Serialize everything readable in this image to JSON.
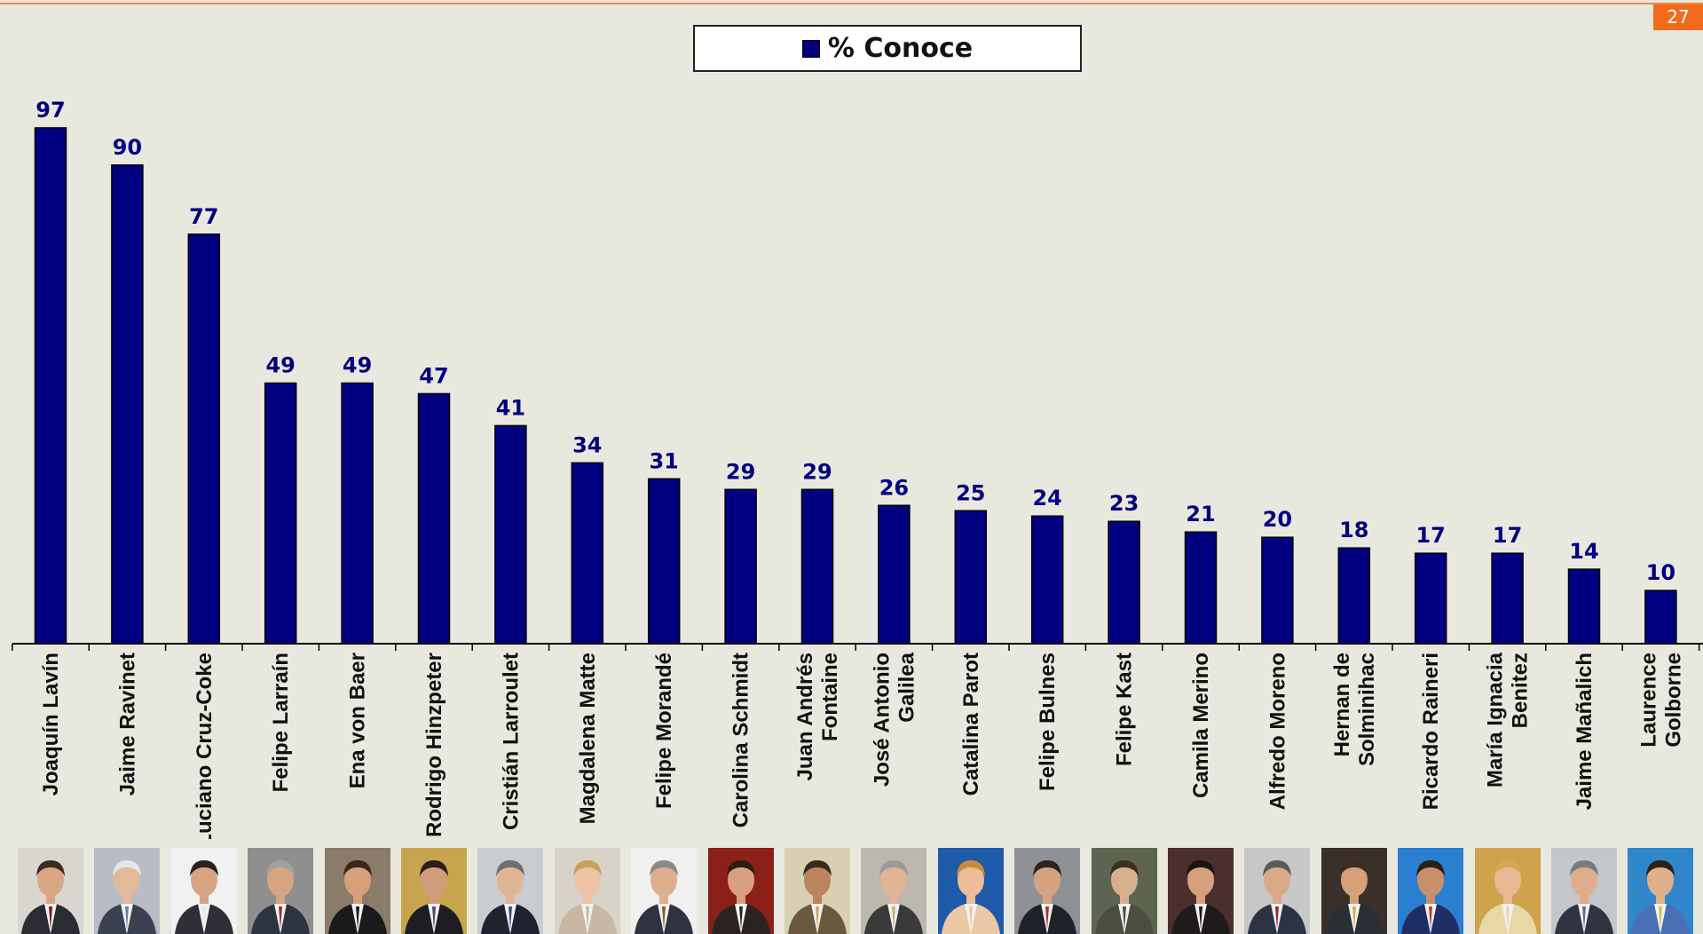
{
  "page_number": "27",
  "legend": {
    "label": "% Conoce",
    "color": "#000080"
  },
  "chart_data": {
    "type": "bar",
    "legend": [
      "% Conoce"
    ],
    "legend_position": "top-center",
    "grid": false,
    "ylim": [
      0,
      100
    ],
    "categories": [
      [
        "Joaquín Lavín"
      ],
      [
        "Jaime Ravinet"
      ],
      [
        "Luciano Cruz-Coke"
      ],
      [
        "Felipe Larraín"
      ],
      [
        "Ena von Baer"
      ],
      [
        "Rodrigo Hinzpeter"
      ],
      [
        "Cristián Larroulet"
      ],
      [
        "Magdalena Matte"
      ],
      [
        "Felipe Morandé"
      ],
      [
        "Carolina Schmidt"
      ],
      [
        "Juan Andrés",
        "Fontaine"
      ],
      [
        "José Antonio",
        "Galilea"
      ],
      [
        "Catalina Parot"
      ],
      [
        "Felipe Bulnes"
      ],
      [
        "Felipe Kast"
      ],
      [
        "Camila Merino"
      ],
      [
        "Alfredo Moreno"
      ],
      [
        "Hernan de",
        "Solminihac"
      ],
      [
        "Ricardo Raineri"
      ],
      [
        "María Ignacia",
        "Benitez"
      ],
      [
        "Jaime Mañalich"
      ],
      [
        "Laurence",
        "Golborne"
      ]
    ],
    "series": [
      {
        "name": "% Conoce",
        "color": "#000080",
        "values": [
          97,
          90,
          77,
          49,
          49,
          47,
          41,
          34,
          31,
          29,
          29,
          26,
          25,
          24,
          23,
          21,
          20,
          18,
          17,
          17,
          14,
          10
        ]
      }
    ]
  },
  "photos": [
    {
      "name": "Joaquín Lavín",
      "suit": "#2b2b33",
      "tie": "#7a1c1c",
      "bg": "#d9d6cf",
      "skin": "#d9a785",
      "hair": "#3a2a20"
    },
    {
      "name": "Jaime Ravinet",
      "suit": "#3b4150",
      "tie": "#6d7fa8",
      "bg": "#b7bcc6",
      "skin": "#e2b99a",
      "hair": "#e6e6e6"
    },
    {
      "name": "Luciano Cruz-Coke",
      "suit": "#2f3037",
      "tie": "#e8e8e8",
      "bg": "#f1f1f1",
      "skin": "#d8a582",
      "hair": "#2c221c"
    },
    {
      "name": "Felipe Larraín",
      "suit": "#2d3440",
      "tie": "#9b2d2d",
      "bg": "#8f8f8f",
      "skin": "#d7a482",
      "hair": "#a0a0a0"
    },
    {
      "name": "Ena von Baer",
      "suit": "#1a1a1a",
      "tie": "#1a1a1a",
      "bg": "#8a7b6a",
      "skin": "#d7a07b",
      "hair": "#3a2618"
    },
    {
      "name": "Rodrigo Hinzpeter",
      "suit": "#1d1d22",
      "tie": "#4a4a6a",
      "bg": "#c7a44e",
      "skin": "#cf9d7c",
      "hair": "#2a1e16"
    },
    {
      "name": "Cristián Larroulet",
      "suit": "#1f2330",
      "tie": "#3d4d86",
      "bg": "#c9ccd1",
      "skin": "#e0b596",
      "hair": "#6e6e6e"
    },
    {
      "name": "Magdalena Matte",
      "suit": "#c7b7a3",
      "tie": "#c7b7a3",
      "bg": "#d8d3c8",
      "skin": "#ecc3a4",
      "hair": "#c9a05d"
    },
    {
      "name": "Felipe Morandé",
      "suit": "#2f3340",
      "tie": "#8b5a2b",
      "bg": "#f0f0f0",
      "skin": "#dfae8c",
      "hair": "#8a8a8a"
    },
    {
      "name": "Carolina Schmidt",
      "suit": "#2a2322",
      "tie": "#2a2322",
      "bg": "#8c1f17",
      "skin": "#d9a07f",
      "hair": "#2c1d16"
    },
    {
      "name": "Juan Andrés Fontaine",
      "suit": "#6a5a3d",
      "tie": "#c8a860",
      "bg": "#d9cfb5",
      "skin": "#b9845e",
      "hair": "#3a2a1a"
    },
    {
      "name": "José Antonio Galilea",
      "suit": "#3a3a3a",
      "tie": "#c9b06a",
      "bg": "#bdb8ae",
      "skin": "#e0b494",
      "hair": "#9b9b9b"
    },
    {
      "name": "Catalina Parot",
      "suit": "#e9c9a6",
      "tie": "#e9c9a6",
      "bg": "#1f5aa8",
      "skin": "#ecbd98",
      "hair": "#c98b3e"
    },
    {
      "name": "Felipe Bulnes",
      "suit": "#1f2228",
      "tie": "#b12d2d",
      "bg": "#8e9296",
      "skin": "#d6a381",
      "hair": "#2e241d"
    },
    {
      "name": "Felipe Kast",
      "suit": "#4a4f3d",
      "tie": "#4a4f3d",
      "bg": "#5d6450",
      "skin": "#d9b08f",
      "hair": "#3a3024"
    },
    {
      "name": "Camila Merino",
      "suit": "#201b1b",
      "tie": "#201b1b",
      "bg": "#4b2e2e",
      "skin": "#d7a07c",
      "hair": "#1e1410"
    },
    {
      "name": "Alfredo Moreno",
      "suit": "#2d3342",
      "tie": "#a1272a",
      "bg": "#c8c8c8",
      "skin": "#d9a988",
      "hair": "#5a5a5a"
    },
    {
      "name": "Hernan de Solminihac",
      "suit": "#2a2e35",
      "tie": "#d4b04a",
      "bg": "#3a2f2b",
      "skin": "#d6a07a",
      "hair": "#3d2d20"
    },
    {
      "name": "Ricardo Raineri",
      "suit": "#1f2f66",
      "tie": "#c23b2b",
      "bg": "#2b7fd0",
      "skin": "#c98f6a",
      "hair": "#2a1f18"
    },
    {
      "name": "María Ignacia Benitez",
      "suit": "#e8d8a8",
      "tie": "#e8d8a8",
      "bg": "#cfa24c",
      "skin": "#e8b894",
      "hair": "#d9a652"
    },
    {
      "name": "Jaime Mañalich",
      "suit": "#2f3440",
      "tie": "#5b6ea0",
      "bg": "#c3c7cc",
      "skin": "#dcae8e",
      "hair": "#7a7a7a"
    },
    {
      "name": "Laurence Golborne",
      "suit": "#4a6fb5",
      "tie": "#d7c44a",
      "bg": "#2f86c9",
      "skin": "#e0b08a",
      "hair": "#2a2018"
    }
  ]
}
